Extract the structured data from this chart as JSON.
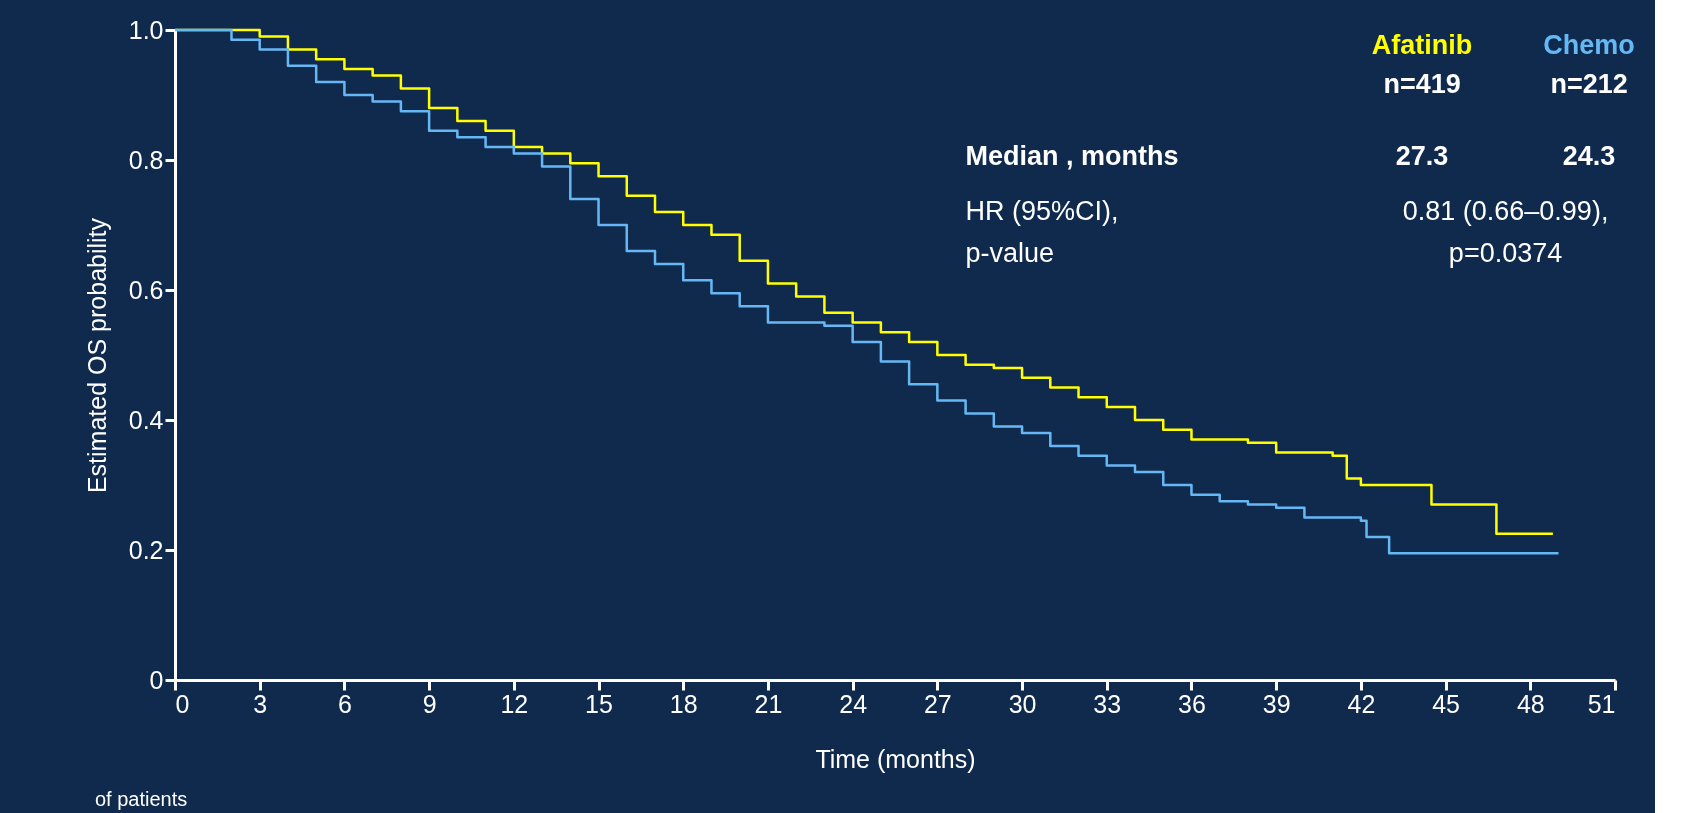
{
  "chart_data": {
    "type": "step",
    "xlabel": "Time (months)",
    "ylabel": "Estimated OS probability",
    "xlim": [
      0,
      51
    ],
    "xticks": [
      0,
      3,
      6,
      9,
      12,
      15,
      18,
      21,
      24,
      27,
      30,
      33,
      36,
      39,
      42,
      45,
      48,
      51
    ],
    "ylim": [
      0,
      1
    ],
    "yticks": [
      0,
      0.2,
      0.4,
      0.6,
      0.8,
      {
        "value": 1,
        "label": "1.0"
      }
    ],
    "grid": false,
    "legend": "top right",
    "line_style": "solid",
    "series": [
      {
        "name": "Afatinib",
        "color": "#ffff00",
        "x": [
          0,
          3,
          4,
          5,
          6,
          7,
          8,
          9,
          10,
          11,
          12,
          13,
          14,
          15,
          16,
          17,
          18,
          19,
          20,
          21,
          22,
          23,
          24,
          25,
          26,
          27,
          28,
          29,
          30,
          31,
          32,
          33,
          34,
          35,
          36,
          38,
          39,
          41,
          41.5,
          42,
          44.5,
          46.8,
          48.8
        ],
        "values": [
          1.0,
          0.99,
          0.97,
          0.955,
          0.94,
          0.93,
          0.91,
          0.88,
          0.86,
          0.845,
          0.82,
          0.81,
          0.795,
          0.775,
          0.745,
          0.72,
          0.7,
          0.685,
          0.645,
          0.61,
          0.59,
          0.565,
          0.55,
          0.535,
          0.52,
          0.5,
          0.485,
          0.48,
          0.465,
          0.45,
          0.435,
          0.42,
          0.4,
          0.385,
          0.37,
          0.365,
          0.35,
          0.345,
          0.31,
          0.3,
          0.27,
          0.225,
          0.225
        ]
      },
      {
        "name": "Chemo",
        "color": "#66b8f5",
        "x": [
          0,
          2,
          3,
          4,
          5,
          6,
          7,
          8,
          9,
          10,
          11,
          12,
          13,
          14,
          15,
          16,
          17,
          18,
          19,
          20,
          21,
          23,
          24,
          25,
          26,
          27,
          28,
          29,
          30,
          31,
          32,
          33,
          34,
          35,
          36,
          37,
          38,
          39,
          40,
          42,
          42.2,
          43,
          49
        ],
        "values": [
          1.0,
          0.985,
          0.97,
          0.945,
          0.92,
          0.9,
          0.89,
          0.875,
          0.845,
          0.835,
          0.82,
          0.81,
          0.79,
          0.74,
          0.7,
          0.66,
          0.64,
          0.615,
          0.595,
          0.575,
          0.55,
          0.545,
          0.52,
          0.49,
          0.455,
          0.43,
          0.41,
          0.39,
          0.38,
          0.36,
          0.345,
          0.33,
          0.32,
          0.3,
          0.285,
          0.275,
          0.27,
          0.265,
          0.25,
          0.245,
          0.22,
          0.195,
          0.195
        ]
      }
    ],
    "annotations": [
      "n=419",
      "n=212",
      "Median , months",
      "27.3",
      "24.3",
      "HR (95%CI),",
      "p-value",
      "0.81 (0.66–0.99),",
      "p=0.0374",
      "of patients"
    ]
  }
}
